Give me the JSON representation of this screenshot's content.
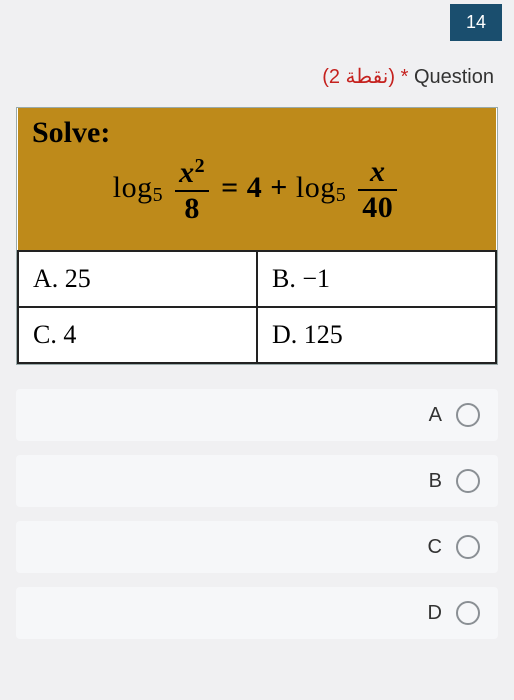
{
  "header": {
    "badge": "14"
  },
  "meta": {
    "points_ar": "(نقطة 2)",
    "star": " * ",
    "label": "Question"
  },
  "question": {
    "solve_label": "Solve:",
    "equation": {
      "log1_base": "5",
      "frac1_num_var": "x",
      "frac1_num_exp": "2",
      "frac1_den": "8",
      "eq": " = ",
      "rhs_const": "4 + ",
      "log2_base": "5",
      "frac2_num": "x",
      "frac2_den": "40"
    },
    "answers": {
      "a": "A.  25",
      "b": "B. −1",
      "c": "C. 4",
      "d": "D. 125"
    }
  },
  "choices": [
    {
      "label": "A"
    },
    {
      "label": "B"
    },
    {
      "label": "C"
    },
    {
      "label": "D"
    }
  ],
  "colors": {
    "badge_bg": "#1a4e6e",
    "points_color": "#c5221f",
    "solve_bg": "#c28c1f",
    "cell_border": "#222222",
    "choice_bg": "#f6f7f9",
    "radio_border": "#8a8f94"
  }
}
